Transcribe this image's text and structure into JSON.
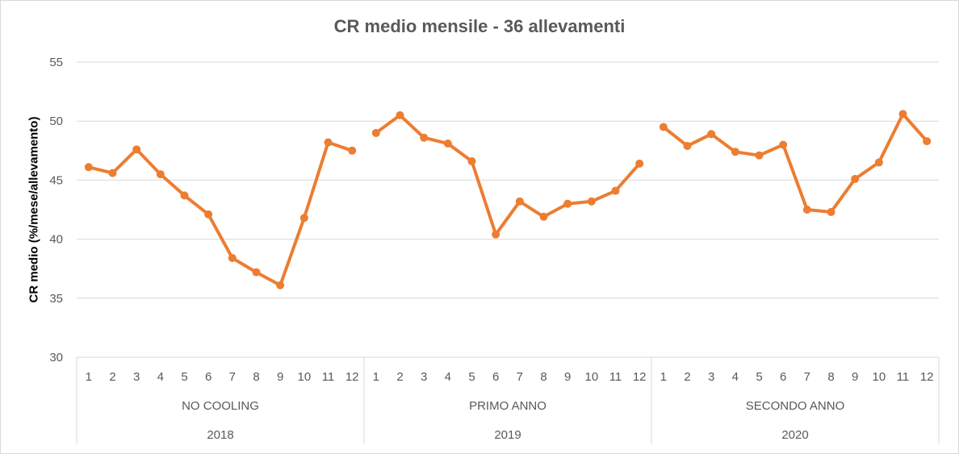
{
  "chart_data": {
    "type": "line",
    "title": "CR medio mensile - 36 allevamenti",
    "ylabel": "CR medio (%/mese/allevamento)",
    "xlabel": "",
    "ylim": [
      30,
      55
    ],
    "yticks": [
      "30",
      "35",
      "40",
      "45",
      "50",
      "55"
    ],
    "grid": true,
    "color": "#ED7D31",
    "groups": [
      {
        "year": "2018",
        "label": "NO COOLING",
        "months": [
          "1",
          "2",
          "3",
          "4",
          "5",
          "6",
          "7",
          "8",
          "9",
          "10",
          "11",
          "12"
        ],
        "values": [
          46.1,
          45.6,
          47.6,
          45.5,
          43.7,
          42.1,
          38.4,
          37.2,
          36.1,
          41.8,
          48.2,
          47.5
        ]
      },
      {
        "year": "2019",
        "label": "PRIMO ANNO",
        "months": [
          "1",
          "2",
          "3",
          "4",
          "5",
          "6",
          "7",
          "8",
          "9",
          "10",
          "11",
          "12"
        ],
        "values": [
          49.0,
          50.5,
          48.6,
          48.1,
          46.6,
          40.4,
          43.2,
          41.9,
          43.0,
          43.2,
          44.1,
          46.4
        ]
      },
      {
        "year": "2020",
        "label": "SECONDO ANNO",
        "months": [
          "1",
          "2",
          "3",
          "4",
          "5",
          "6",
          "7",
          "8",
          "9",
          "10",
          "11",
          "12"
        ],
        "values": [
          49.5,
          47.9,
          48.9,
          47.4,
          47.1,
          48.0,
          42.5,
          42.3,
          45.1,
          46.5,
          50.6,
          48.3
        ]
      }
    ]
  }
}
